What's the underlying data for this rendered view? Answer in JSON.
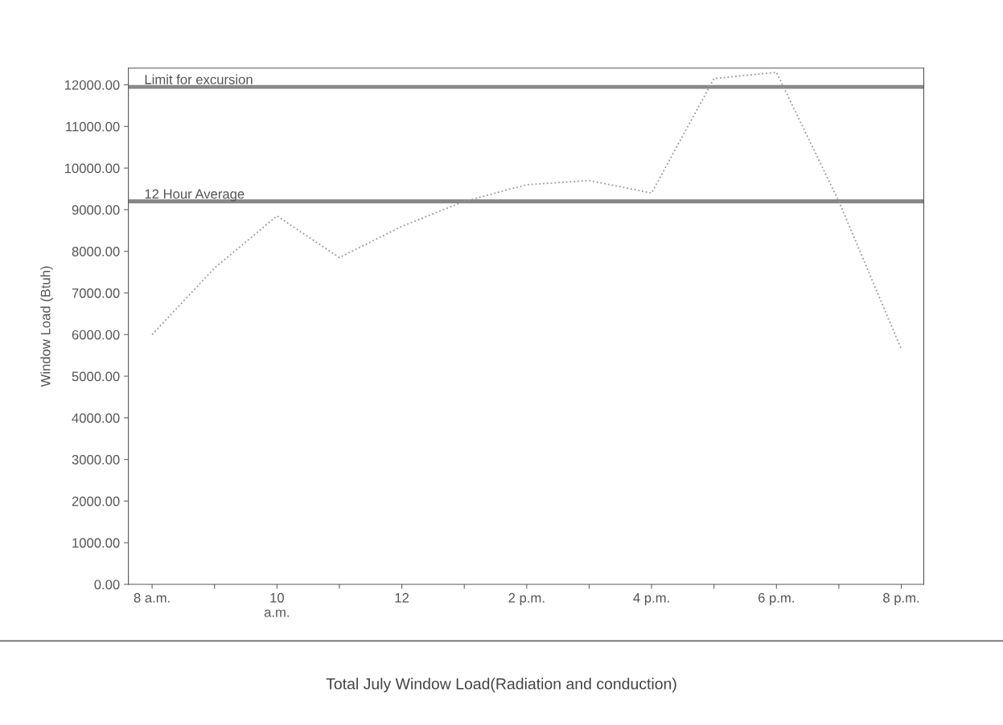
{
  "chart_data": {
    "type": "line",
    "title": "Total July Window Load(Radiation and conduction)",
    "ylabel": "Window Load (Btuh)",
    "categories": [
      "8 a.m.",
      null,
      "10\na.m.",
      null,
      "12",
      null,
      "2 p.m.",
      null,
      "4 p.m.",
      null,
      "6 p.m.",
      null,
      "8 p.m."
    ],
    "series": [
      {
        "color": "#999999",
        "values": [
          6000,
          7600,
          8850,
          7850,
          8600,
          9200,
          9600,
          9700,
          9400,
          12150,
          12300,
          9200,
          5650
        ]
      }
    ],
    "line_style": "dotted",
    "marker": "none",
    "grid": false,
    "legend": false,
    "ylim": [
      0,
      12400
    ],
    "yticks": [
      {
        "value": 0,
        "label": "0.00"
      },
      {
        "value": 1000,
        "label": "1000.00"
      },
      {
        "value": 2000,
        "label": "2000.00"
      },
      {
        "value": 3000,
        "label": "3000.00"
      },
      {
        "value": 4000,
        "label": "4000.00"
      },
      {
        "value": 5000,
        "label": "5000.00"
      },
      {
        "value": 6000,
        "label": "6000.00"
      },
      {
        "value": 7000,
        "label": "7000.00"
      },
      {
        "value": 8000,
        "label": "8000.00"
      },
      {
        "value": 9000,
        "label": "9000.00"
      },
      {
        "value": 10000,
        "label": "10000.00"
      },
      {
        "value": 11000,
        "label": "11000.00"
      },
      {
        "value": 12000,
        "label": "12000.00"
      }
    ],
    "ref_lines": [
      {
        "axis": "y",
        "value": 11950,
        "label": "Limit for excursion",
        "color": "#888888"
      },
      {
        "axis": "y",
        "value": 9200,
        "label": "12 Hour Average",
        "color": "#888888"
      }
    ]
  }
}
